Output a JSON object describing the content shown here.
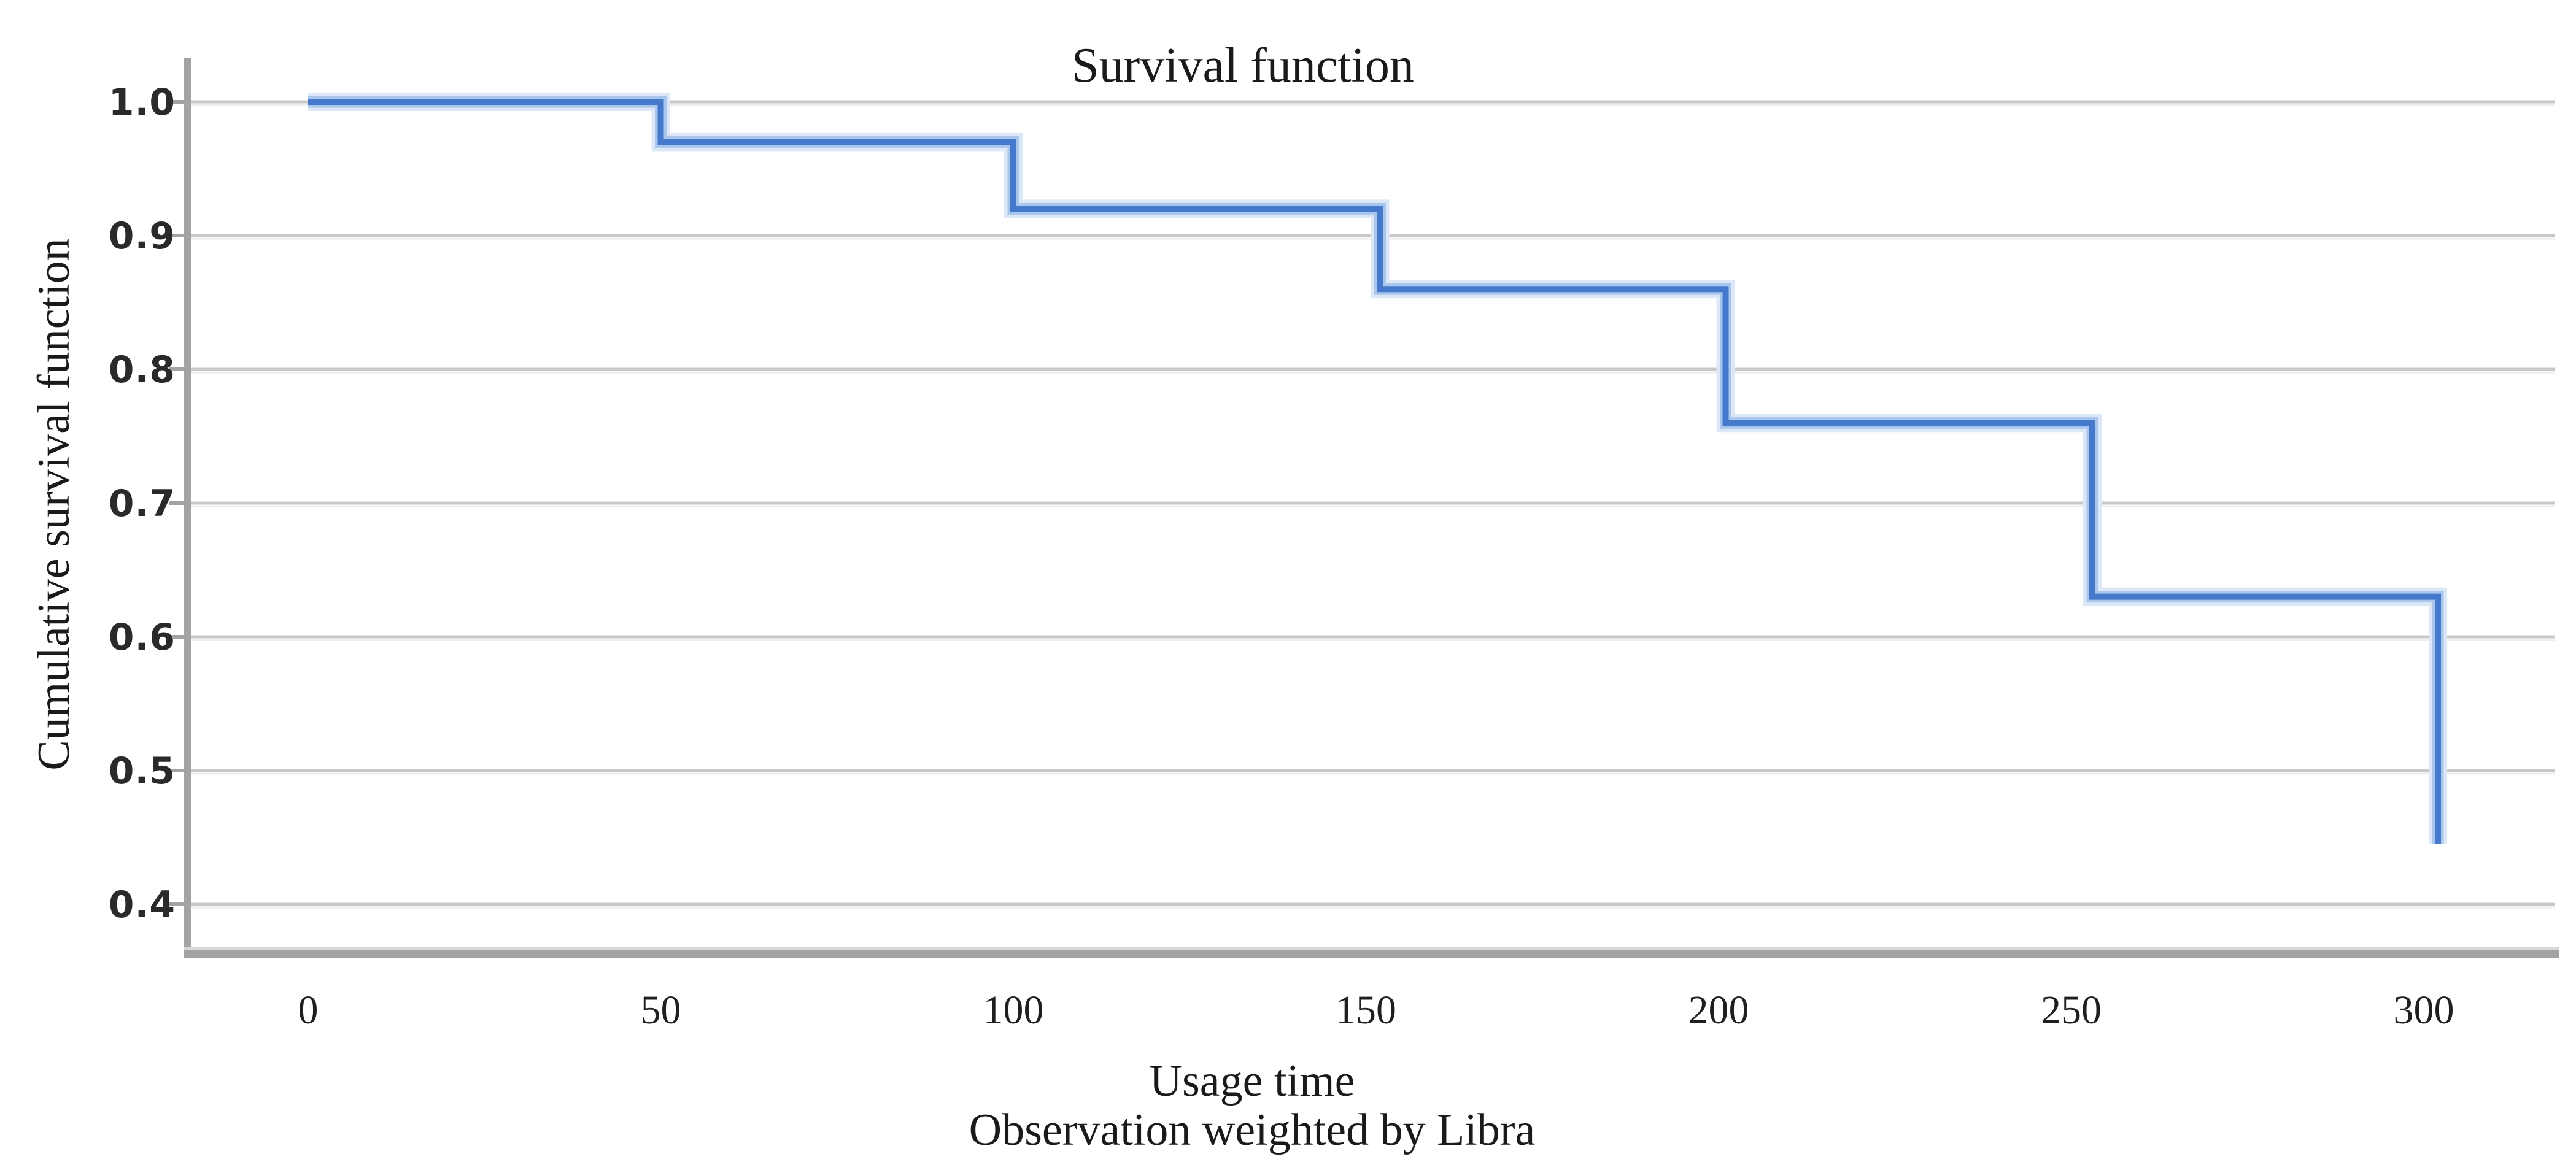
{
  "title": "Survival function",
  "y_axis": {
    "label": "Cumulative survival function",
    "ticks": [
      "1.0",
      "0.9",
      "0.8",
      "0.7",
      "0.6",
      "0.5",
      "0.4"
    ]
  },
  "x_axis": {
    "label": "Usage time",
    "sublabel": "Observation weighted by Libra",
    "ticks": [
      "0",
      "50",
      "100",
      "150",
      "200",
      "250",
      "300"
    ]
  },
  "colors": {
    "curve_core": "#4479CB",
    "curve_halo_mid": "#A9C6EC",
    "curve_halo_outer": "#DCE8F7",
    "gridline": "#C8C8C8",
    "axis": "#A3A3A3",
    "axis_light": "#D9D9D9",
    "text": "#1a1a1a",
    "background": "#FFFFFF"
  },
  "chart_data": {
    "type": "line",
    "subtype": "step-survival",
    "title": "Survival function",
    "xlabel": "Usage time",
    "xlabel_note": "Observation weighted by Libra",
    "ylabel": "Cumulative survival function",
    "x_ticks": [
      0,
      50,
      100,
      150,
      200,
      250,
      300
    ],
    "y_ticks": [
      1.0,
      0.9,
      0.8,
      0.7,
      0.6,
      0.5,
      0.4
    ],
    "xlim": [
      -17,
      320
    ],
    "ylim": [
      0.365,
      1.035
    ],
    "grid": "horizontal",
    "legend": "none",
    "series": [
      {
        "name": "Cumulative survival function",
        "color": "#4479CB",
        "step_events": [
          {
            "time": 50,
            "from": 1.0,
            "to": 0.97
          },
          {
            "time": 100,
            "from": 0.97,
            "to": 0.92
          },
          {
            "time": 152,
            "from": 0.92,
            "to": 0.86
          },
          {
            "time": 201,
            "from": 0.86,
            "to": 0.76
          },
          {
            "time": 253,
            "from": 0.76,
            "to": 0.63
          },
          {
            "time": 302,
            "from": 0.63,
            "to": 0.445
          }
        ],
        "points": [
          [
            0,
            1.0
          ],
          [
            50,
            1.0
          ],
          [
            50,
            0.97
          ],
          [
            100,
            0.97
          ],
          [
            100,
            0.92
          ],
          [
            152,
            0.92
          ],
          [
            152,
            0.86
          ],
          [
            201,
            0.86
          ],
          [
            201,
            0.76
          ],
          [
            253,
            0.76
          ],
          [
            253,
            0.63
          ],
          [
            302,
            0.63
          ],
          [
            302,
            0.445
          ]
        ]
      }
    ]
  }
}
